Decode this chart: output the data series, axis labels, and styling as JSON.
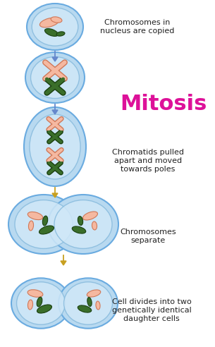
{
  "bg_color": "#ffffff",
  "cell_fill": "#b8d9f0",
  "cell_edge": "#6aabe0",
  "cell_inner_fill": "#d0e8f8",
  "cell_inner_edge": "#88bbdd",
  "salmon_color": "#f5b8a0",
  "salmon_edge": "#d07858",
  "dark_green": "#3a6e2a",
  "green_edge": "#1a4010",
  "magenta_title": "#dd1199",
  "arrow_blue": "#6688cc",
  "arrow_gold": "#c8a020",
  "text_color": "#222222",
  "title": "Mitosis",
  "label1": "Chromosomes in\nnucleus are copied",
  "label2": "Chromatids pulled\napart and moved\ntowards poles",
  "label3": "Chromosomes\nseparate",
  "label4": "Cell divides into two\ngenetically identical\ndaughter cells"
}
